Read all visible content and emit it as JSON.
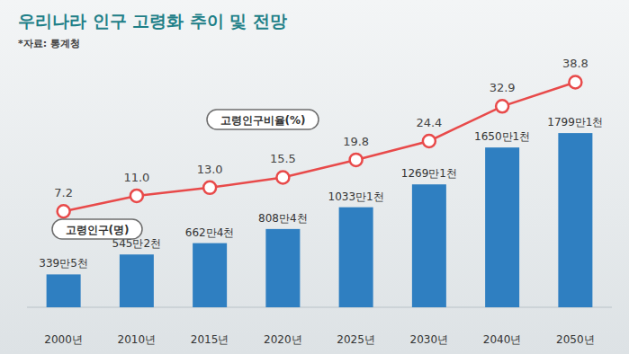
{
  "chart_data": {
    "type": "bar",
    "title": "우리나라 인구 고령화 추이 및 전망",
    "subtitle": "*자료: 통계청",
    "categories": [
      "2000년",
      "2010년",
      "2015년",
      "2020년",
      "2025년",
      "2030년",
      "2040년",
      "2050년"
    ],
    "series": [
      {
        "name": "고령인구(명)",
        "type": "bar",
        "color": "#2f7fc1",
        "values": [
          3395000,
          5452000,
          6624000,
          8084000,
          10331000,
          12691000,
          16501000,
          17991000
        ],
        "value_labels": [
          "339만5천",
          "545만2천",
          "662만4천",
          "808만4천",
          "1033만1천",
          "1269만1천",
          "1650만1천",
          "1799만1천"
        ]
      },
      {
        "name": "고령인구비율(%)",
        "type": "line",
        "axis": "y2",
        "color": "#e84a4a",
        "marker": "circle",
        "values": [
          7.2,
          11,
          13,
          15.5,
          19.8,
          24.4,
          32.9,
          38.8
        ],
        "value_labels": [
          "7.2",
          "11.0",
          "13.0",
          "15.5",
          "19.8",
          "24.4",
          "32.9",
          "38.8"
        ]
      }
    ],
    "ylim": [
      0,
      18000000
    ],
    "y2lim": [
      0,
      40
    ],
    "data_labels": true,
    "tick_labels": "x",
    "grid": false
  }
}
